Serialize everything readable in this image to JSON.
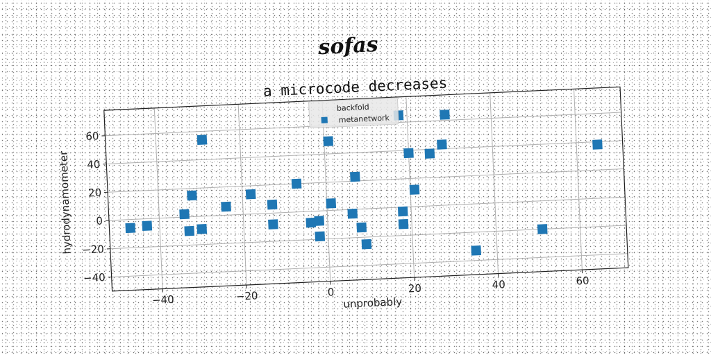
{
  "title": "sofas",
  "chart_data": {
    "type": "scatter",
    "title": "a microcode decreases",
    "xlabel": "unprobably",
    "ylabel": "hydrodynamometer",
    "xlim": [
      -52,
      71
    ],
    "ylim": [
      -50,
      78
    ],
    "xticks": [
      -40,
      -20,
      0,
      20,
      40,
      60
    ],
    "yticks": [
      -40,
      -20,
      0,
      20,
      40,
      60
    ],
    "xtick_labels": [
      "−40",
      "−20",
      "0",
      "20",
      "40",
      "60"
    ],
    "ytick_labels": [
      "−40",
      "−20",
      "0",
      "20",
      "40",
      "60"
    ],
    "grid": true,
    "legend_position": "top-center",
    "legend": [
      "backfold",
      "metanetwork"
    ],
    "color": "#1f77b4",
    "series": [
      {
        "name": "metanetwork",
        "x": [
          -47,
          -43,
          -34,
          -33,
          -32,
          -30,
          -29,
          -24,
          -18,
          -13,
          -13,
          -7,
          -4,
          -2,
          -2,
          1,
          1,
          6,
          7,
          8,
          9,
          18,
          18,
          18,
          20,
          21,
          25,
          28,
          29,
          35,
          51,
          65
        ],
        "y": [
          -6,
          -5,
          2,
          -10,
          15,
          -9,
          54,
          6,
          14,
          6,
          -8,
          20,
          -8,
          -7,
          -18,
          49,
          5,
          -3,
          23,
          -13,
          -25,
          65,
          -3,
          -12,
          38,
          12,
          37,
          43,
          64,
          -33,
          -20,
          38
        ]
      }
    ]
  }
}
